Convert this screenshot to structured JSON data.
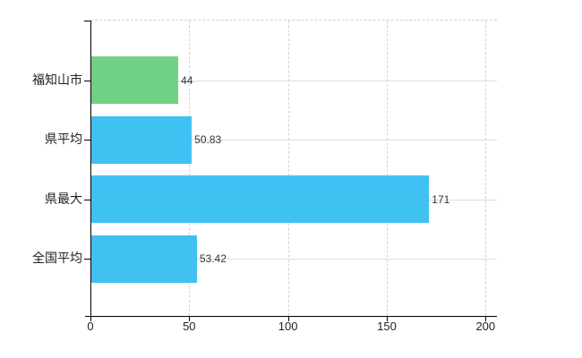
{
  "chart_data": {
    "type": "bar",
    "orientation": "horizontal",
    "categories": [
      "福知山市",
      "県平均",
      "県最大",
      "全国平均"
    ],
    "values": [
      44,
      50.83,
      171,
      53.42
    ],
    "value_labels": [
      "44",
      "50.83",
      "171",
      "53.42"
    ],
    "bar_colors": [
      "#70d184",
      "#3fc1f1",
      "#3fc1f1",
      "#3fc1f1"
    ],
    "xlim": [
      0,
      200
    ],
    "xticks": [
      0,
      50,
      100,
      150,
      200
    ],
    "xtick_labels": [
      "0",
      "50",
      "100",
      "150",
      "200"
    ],
    "grid": true,
    "legend_position": "none"
  },
  "colors": {
    "bar_blue": "#3fc1f1",
    "bar_green": "#70d184",
    "axis": "#000000",
    "grid_line": "#d9d9d9",
    "text": "#222222",
    "background": "#ffffff"
  }
}
